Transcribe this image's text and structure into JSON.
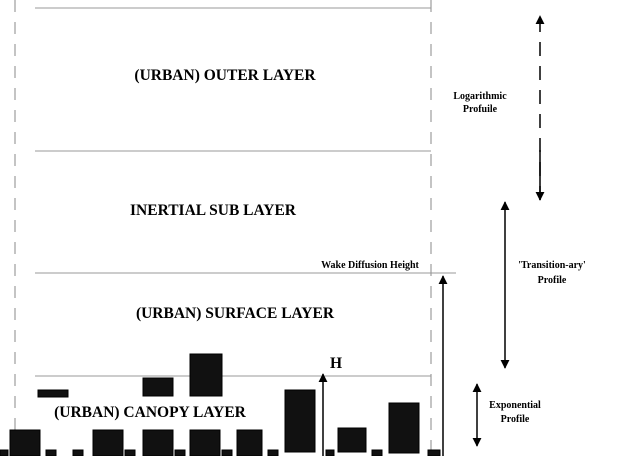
{
  "layers": {
    "outer": "(URBAN) OUTER LAYER",
    "inertial": "INERTIAL SUB LAYER",
    "surface": "(URBAN) SURFACE LAYER",
    "canopy": "(URBAN) CANOPY LAYER"
  },
  "markers": {
    "wake": "Wake Diffusion Height",
    "height": "H"
  },
  "profiles": {
    "logarithmic": [
      "Logarithmic",
      "Profuile"
    ],
    "transition": [
      "'Transition-ary'",
      "Profile"
    ],
    "exponential": [
      "Exponential",
      "Profile"
    ]
  }
}
